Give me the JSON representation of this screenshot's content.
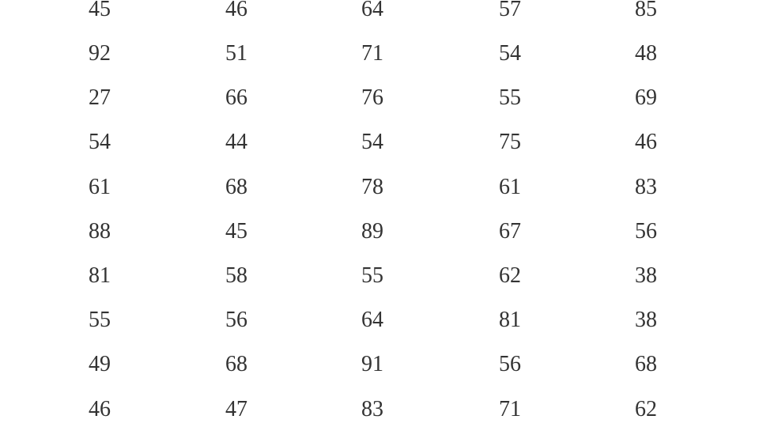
{
  "table": {
    "rows": [
      [
        "45",
        "46",
        "64",
        "57",
        "85"
      ],
      [
        "92",
        "51",
        "71",
        "54",
        "48"
      ],
      [
        "27",
        "66",
        "76",
        "55",
        "69"
      ],
      [
        "54",
        "44",
        "54",
        "75",
        "46"
      ],
      [
        "61",
        "68",
        "78",
        "61",
        "83"
      ],
      [
        "88",
        "45",
        "89",
        "67",
        "56"
      ],
      [
        "81",
        "58",
        "55",
        "62",
        "38"
      ],
      [
        "55",
        "56",
        "64",
        "81",
        "38"
      ],
      [
        "49",
        "68",
        "91",
        "56",
        "68"
      ],
      [
        "46",
        "47",
        "83",
        "71",
        "62"
      ]
    ]
  }
}
